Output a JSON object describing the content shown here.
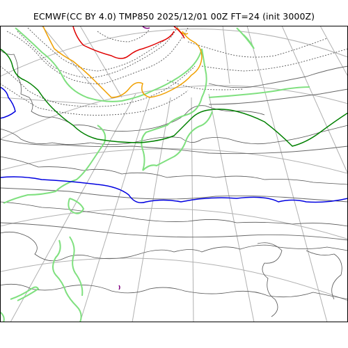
{
  "title": "ECMWF(CC BY 4.0) TMP850 2025/12/01 00Z FT=24 (init 3000Z)",
  "map": {
    "projection": "polar-stereographic",
    "graticule": true,
    "colors": {
      "background": "#ffffff",
      "frame": "#000000",
      "graticule": "#b0b0b0",
      "coast": "#555555",
      "isotherm_dotted": "#555555",
      "isotherm_gray": "#666666",
      "isotherm_green": "#008000",
      "isotherm_lightgreen": "#7fe07f",
      "isotherm_blue": "#0000e0",
      "isotherm_orange": "#f0a000",
      "isotherm_red": "#e00000",
      "isotherm_purple": "#800080"
    }
  }
}
